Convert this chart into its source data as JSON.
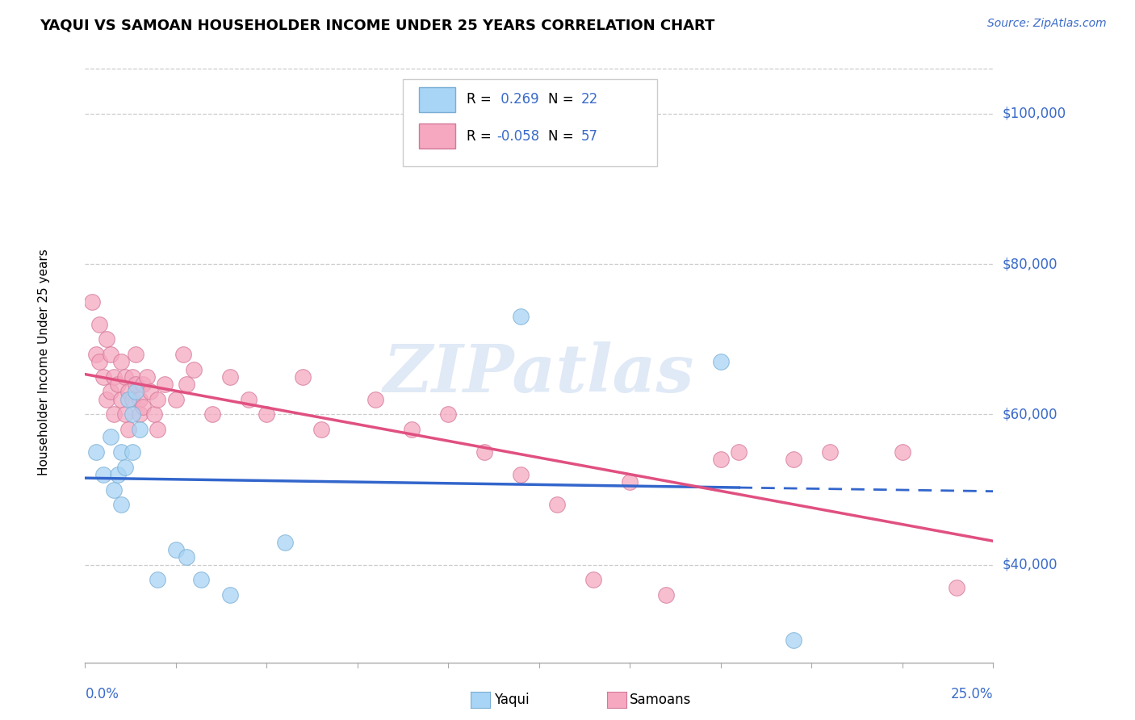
{
  "title": "YAQUI VS SAMOAN HOUSEHOLDER INCOME UNDER 25 YEARS CORRELATION CHART",
  "source": "Source: ZipAtlas.com",
  "ylabel": "Householder Income Under 25 years",
  "xlim": [
    0.0,
    0.25
  ],
  "ylim": [
    27000,
    107000
  ],
  "yticks": [
    40000,
    60000,
    80000,
    100000
  ],
  "ytick_labels": [
    "$40,000",
    "$60,000",
    "$80,000",
    "$100,000"
  ],
  "yaqui_r": "0.269",
  "yaqui_n": "22",
  "samoan_r": "-0.058",
  "samoan_n": "57",
  "yaqui_fill": "#A8D4F5",
  "samoan_fill": "#F5A8C0",
  "yaqui_edge": "#7AAFD4",
  "samoan_edge": "#D47899",
  "yaqui_line": "#3366CC",
  "samoan_line": "#E05080",
  "blue_text": "#3A6BC9",
  "watermark": "ZIPatlas",
  "yaqui_points": [
    [
      0.003,
      55000
    ],
    [
      0.005,
      52000
    ],
    [
      0.007,
      57000
    ],
    [
      0.008,
      50000
    ],
    [
      0.009,
      52000
    ],
    [
      0.01,
      55000
    ],
    [
      0.01,
      48000
    ],
    [
      0.011,
      53000
    ],
    [
      0.012,
      62000
    ],
    [
      0.013,
      60000
    ],
    [
      0.013,
      55000
    ],
    [
      0.014,
      63000
    ],
    [
      0.015,
      58000
    ],
    [
      0.02,
      38000
    ],
    [
      0.025,
      42000
    ],
    [
      0.028,
      41000
    ],
    [
      0.032,
      38000
    ],
    [
      0.04,
      36000
    ],
    [
      0.055,
      43000
    ],
    [
      0.12,
      73000
    ],
    [
      0.175,
      67000
    ],
    [
      0.195,
      30000
    ]
  ],
  "samoan_points": [
    [
      0.002,
      75000
    ],
    [
      0.003,
      68000
    ],
    [
      0.004,
      72000
    ],
    [
      0.004,
      67000
    ],
    [
      0.005,
      65000
    ],
    [
      0.006,
      70000
    ],
    [
      0.006,
      62000
    ],
    [
      0.007,
      68000
    ],
    [
      0.007,
      63000
    ],
    [
      0.008,
      65000
    ],
    [
      0.008,
      60000
    ],
    [
      0.009,
      64000
    ],
    [
      0.01,
      67000
    ],
    [
      0.01,
      62000
    ],
    [
      0.011,
      65000
    ],
    [
      0.011,
      60000
    ],
    [
      0.012,
      63000
    ],
    [
      0.012,
      58000
    ],
    [
      0.013,
      65000
    ],
    [
      0.013,
      62000
    ],
    [
      0.014,
      68000
    ],
    [
      0.014,
      64000
    ],
    [
      0.015,
      62000
    ],
    [
      0.015,
      60000
    ],
    [
      0.016,
      64000
    ],
    [
      0.016,
      61000
    ],
    [
      0.017,
      65000
    ],
    [
      0.018,
      63000
    ],
    [
      0.019,
      60000
    ],
    [
      0.02,
      62000
    ],
    [
      0.02,
      58000
    ],
    [
      0.022,
      64000
    ],
    [
      0.025,
      62000
    ],
    [
      0.027,
      68000
    ],
    [
      0.028,
      64000
    ],
    [
      0.03,
      66000
    ],
    [
      0.035,
      60000
    ],
    [
      0.04,
      65000
    ],
    [
      0.045,
      62000
    ],
    [
      0.05,
      60000
    ],
    [
      0.06,
      65000
    ],
    [
      0.065,
      58000
    ],
    [
      0.08,
      62000
    ],
    [
      0.09,
      58000
    ],
    [
      0.1,
      60000
    ],
    [
      0.11,
      55000
    ],
    [
      0.12,
      52000
    ],
    [
      0.13,
      48000
    ],
    [
      0.14,
      38000
    ],
    [
      0.15,
      51000
    ],
    [
      0.16,
      36000
    ],
    [
      0.175,
      54000
    ],
    [
      0.18,
      55000
    ],
    [
      0.195,
      54000
    ],
    [
      0.205,
      55000
    ],
    [
      0.225,
      55000
    ],
    [
      0.24,
      37000
    ]
  ]
}
